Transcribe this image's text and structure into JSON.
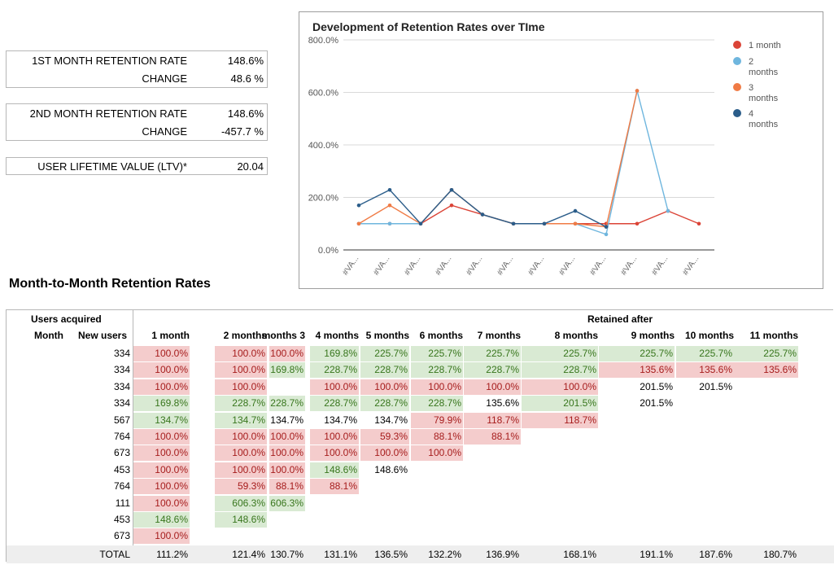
{
  "kpis": [
    {
      "label": "1ST MONTH RETENTION RATE",
      "value": "148.6%"
    },
    {
      "label": "CHANGE",
      "value": "48.6 %"
    },
    {
      "label": "2ND MONTH RETENTION RATE",
      "value": "148.6%"
    },
    {
      "label": "CHANGE",
      "value": "-457.7 %"
    },
    {
      "label": "USER LIFETIME VALUE (LTV)*",
      "value": "20.04"
    }
  ],
  "chart_data": {
    "type": "line",
    "title": "Development of Retention Rates over TIme",
    "categories": [
      "#VA...",
      "#VA...",
      "#VA...",
      "#VA...",
      "#VA...",
      "#VA...",
      "#VA...",
      "#VA...",
      "#VA...",
      "#VA...",
      "#VA...",
      "#VA..."
    ],
    "yticks": [
      "0.0%",
      "200.0%",
      "400.0%",
      "600.0%",
      "800.0%"
    ],
    "ylim": [
      0,
      800
    ],
    "grid": true,
    "legend_position": "right",
    "series": [
      {
        "name": "1 month",
        "color": "#db4437",
        "values": [
          100,
          100,
          100,
          169.8,
          134.7,
          100,
          100,
          100,
          100,
          100,
          148.6,
          100
        ]
      },
      {
        "name": "2 months",
        "color": "#6fb6de",
        "values": [
          100,
          100,
          100,
          228.7,
          134.7,
          100,
          100,
          100,
          59.3,
          606.3,
          148.6,
          null
        ]
      },
      {
        "name": "3 months",
        "color": "#f07b45",
        "values": [
          100,
          169.8,
          100,
          228.7,
          134.7,
          100,
          100,
          100,
          88.1,
          606.3,
          null,
          null
        ]
      },
      {
        "name": "4 months",
        "color": "#2b5d8a",
        "values": [
          169.8,
          228.7,
          100,
          228.7,
          134.7,
          100,
          100,
          148.6,
          88.1,
          null,
          null,
          null
        ]
      }
    ]
  },
  "section_title": "Month-to-Month Retention Rates",
  "table": {
    "group_left": "Users acquired",
    "group_right": "Retained after",
    "col_month": "Month",
    "col_new_users": "New users",
    "headers": [
      "1 month",
      "2 months",
      "3 months",
      "4 months",
      "5 months",
      "6 months",
      "7 months",
      "8 months",
      "9 months",
      "10 months",
      "11 months"
    ],
    "rows": [
      {
        "new_users": "334",
        "cells": [
          [
            "100.0%",
            "r"
          ],
          [
            "100.0%",
            "r"
          ],
          [
            "100.0%",
            "r"
          ],
          [
            "169.8%",
            "g"
          ],
          [
            "225.7%",
            "g"
          ],
          [
            "225.7%",
            "g"
          ],
          [
            "225.7%",
            "g"
          ],
          [
            "225.7%",
            "g"
          ],
          [
            "225.7%",
            "g"
          ],
          [
            "225.7%",
            "g"
          ],
          [
            "225.7%",
            "g"
          ]
        ]
      },
      {
        "new_users": "334",
        "cells": [
          [
            "100.0%",
            "r"
          ],
          [
            "100.0%",
            "r"
          ],
          [
            "169.8%",
            "g"
          ],
          [
            "228.7%",
            "g"
          ],
          [
            "228.7%",
            "g"
          ],
          [
            "228.7%",
            "g"
          ],
          [
            "228.7%",
            "g"
          ],
          [
            "228.7%",
            "g"
          ],
          [
            "135.6%",
            "r"
          ],
          [
            "135.6%",
            "r"
          ],
          [
            "135.6%",
            "r"
          ]
        ]
      },
      {
        "new_users": "334",
        "cells": [
          [
            "100.0%",
            "r"
          ],
          [
            "100.0%",
            "r"
          ],
          [
            "",
            ""
          ],
          [
            "100.0%",
            "r"
          ],
          [
            "100.0%",
            "r"
          ],
          [
            "100.0%",
            "r"
          ],
          [
            "100.0%",
            "r"
          ],
          [
            "100.0%",
            "r"
          ],
          [
            "201.5%",
            "p"
          ],
          [
            "201.5%",
            "p"
          ],
          [
            "",
            ""
          ]
        ]
      },
      {
        "new_users": "334",
        "cells": [
          [
            "169.8%",
            "g"
          ],
          [
            "228.7%",
            "g"
          ],
          [
            "228.7%",
            "g"
          ],
          [
            "228.7%",
            "g"
          ],
          [
            "228.7%",
            "g"
          ],
          [
            "228.7%",
            "g"
          ],
          [
            "135.6%",
            "p"
          ],
          [
            "201.5%",
            "g"
          ],
          [
            "201.5%",
            "p"
          ],
          [
            "",
            ""
          ],
          [
            "",
            ""
          ]
        ]
      },
      {
        "new_users": "567",
        "cells": [
          [
            "134.7%",
            "g"
          ],
          [
            "134.7%",
            "g"
          ],
          [
            "134.7%",
            "p"
          ],
          [
            "134.7%",
            "p"
          ],
          [
            "134.7%",
            "p"
          ],
          [
            "79.9%",
            "r"
          ],
          [
            "118.7%",
            "r"
          ],
          [
            "118.7%",
            "r"
          ],
          [
            "",
            ""
          ],
          [
            "",
            ""
          ],
          [
            "",
            ""
          ]
        ]
      },
      {
        "new_users": "764",
        "cells": [
          [
            "100.0%",
            "r"
          ],
          [
            "100.0%",
            "r"
          ],
          [
            "100.0%",
            "r"
          ],
          [
            "100.0%",
            "r"
          ],
          [
            "59.3%",
            "r"
          ],
          [
            "88.1%",
            "r"
          ],
          [
            "88.1%",
            "r"
          ],
          [
            "",
            ""
          ],
          [
            "",
            ""
          ],
          [
            "",
            ""
          ],
          [
            "",
            ""
          ]
        ]
      },
      {
        "new_users": "673",
        "cells": [
          [
            "100.0%",
            "r"
          ],
          [
            "100.0%",
            "r"
          ],
          [
            "100.0%",
            "r"
          ],
          [
            "100.0%",
            "r"
          ],
          [
            "100.0%",
            "r"
          ],
          [
            "100.0%",
            "r"
          ],
          [
            "",
            ""
          ],
          [
            "",
            ""
          ],
          [
            "",
            ""
          ],
          [
            "",
            ""
          ],
          [
            "",
            ""
          ]
        ]
      },
      {
        "new_users": "453",
        "cells": [
          [
            "100.0%",
            "r"
          ],
          [
            "100.0%",
            "r"
          ],
          [
            "100.0%",
            "r"
          ],
          [
            "148.6%",
            "g"
          ],
          [
            "148.6%",
            "p"
          ],
          [
            "",
            ""
          ],
          [
            "",
            ""
          ],
          [
            "",
            ""
          ],
          [
            "",
            ""
          ],
          [
            "",
            ""
          ],
          [
            "",
            ""
          ]
        ]
      },
      {
        "new_users": "764",
        "cells": [
          [
            "100.0%",
            "r"
          ],
          [
            "59.3%",
            "r"
          ],
          [
            "88.1%",
            "r"
          ],
          [
            "88.1%",
            "r"
          ],
          [
            "",
            ""
          ],
          [
            "",
            ""
          ],
          [
            "",
            ""
          ],
          [
            "",
            ""
          ],
          [
            "",
            ""
          ],
          [
            "",
            ""
          ],
          [
            "",
            ""
          ]
        ]
      },
      {
        "new_users": "111",
        "cells": [
          [
            "100.0%",
            "r"
          ],
          [
            "606.3%",
            "g"
          ],
          [
            "606.3%",
            "g"
          ],
          [
            "",
            ""
          ],
          [
            "",
            ""
          ],
          [
            "",
            ""
          ],
          [
            "",
            ""
          ],
          [
            "",
            ""
          ],
          [
            "",
            ""
          ],
          [
            "",
            ""
          ],
          [
            "",
            ""
          ]
        ]
      },
      {
        "new_users": "453",
        "cells": [
          [
            "148.6%",
            "g"
          ],
          [
            "148.6%",
            "g"
          ],
          [
            "",
            ""
          ],
          [
            "",
            ""
          ],
          [
            "",
            ""
          ],
          [
            "",
            ""
          ],
          [
            "",
            ""
          ],
          [
            "",
            ""
          ],
          [
            "",
            ""
          ],
          [
            "",
            ""
          ],
          [
            "",
            ""
          ]
        ]
      },
      {
        "new_users": "673",
        "cells": [
          [
            "100.0%",
            "r"
          ],
          [
            "",
            ""
          ],
          [
            "",
            ""
          ],
          [
            "",
            ""
          ],
          [
            "",
            ""
          ],
          [
            "",
            ""
          ],
          [
            "",
            ""
          ],
          [
            "",
            ""
          ],
          [
            "",
            ""
          ],
          [
            "",
            ""
          ],
          [
            "",
            ""
          ]
        ]
      }
    ],
    "total_label": "TOTAL",
    "totals": [
      "111.2%",
      "121.4%",
      "130.7%",
      "131.1%",
      "136.5%",
      "132.2%",
      "136.9%",
      "168.1%",
      "191.1%",
      "187.6%",
      "180.7%"
    ]
  }
}
